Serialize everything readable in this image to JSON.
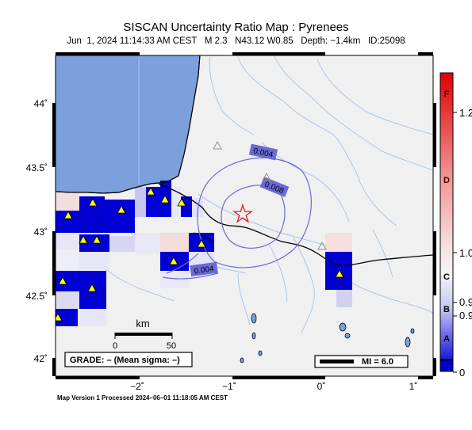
{
  "map": {
    "title": "SISCAN Uncertainty Ratio Map : Pyrenees",
    "subtitle": "Jun  1, 2024 11:14:33 AM CEST   M 2.3   N43.12 W0.85   Depth: −1.4km   ID:25098",
    "lat_labels": [
      "44˚",
      "43.5˚",
      "43˚",
      "42.5˚",
      "42˚"
    ],
    "lon_labels": [
      "−2˚",
      "−1˚",
      "0˚",
      "1˚"
    ],
    "contour_labels": [
      "0.004",
      "0.008",
      "0.004"
    ],
    "scale_bar": {
      "unit": "km",
      "ticks": [
        "0",
        "50"
      ]
    },
    "grade_box": "GRADE: – (Mean sigma: –)",
    "mi_box": "MI = 6.0",
    "footer": "Map Version 1 Processed 2024–06–01 11:18:05 AM CEST",
    "epicenter": {
      "lat": 43.12,
      "lon": -0.85,
      "symbol": "star-icon"
    }
  },
  "colorbar": {
    "letters": [
      "F",
      "D",
      "C",
      "B",
      "A"
    ],
    "values": [
      "1.2",
      "1.0",
      "0.9",
      "0.9",
      "0"
    ],
    "colors": {
      "top": "#e00000",
      "middle": "#f4f4f4",
      "bottom": "#0000d0"
    }
  },
  "colors": {
    "sea": "#7ba0dc",
    "land": "#f0f0f0",
    "rivers": "#a9c6e6",
    "contours": "#6a6ad8",
    "station": "#ffff00",
    "epicenter": "#e02020"
  }
}
